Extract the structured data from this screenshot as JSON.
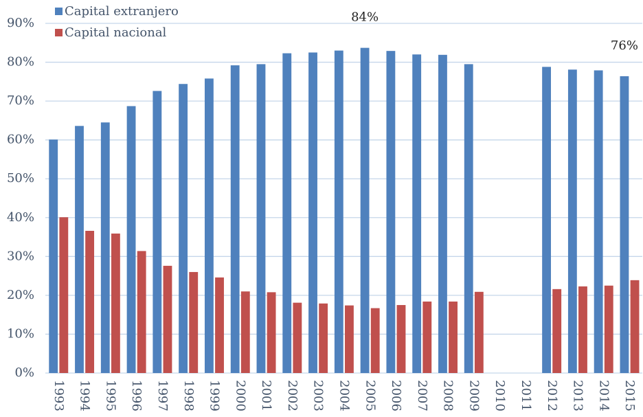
{
  "chart_data": {
    "type": "bar",
    "categories": [
      "1993",
      "1994",
      "1995",
      "1996",
      "1997",
      "1998",
      "1999",
      "2000",
      "2001",
      "2002",
      "2003",
      "2004",
      "2005",
      "2006",
      "2007",
      "2008",
      "2009",
      "2010",
      "2011",
      "2012",
      "2013",
      "2014",
      "2015"
    ],
    "series": [
      {
        "name": "Capital extranjero",
        "color": "#4f81bd",
        "values": [
          60.1,
          63.6,
          64.5,
          68.7,
          72.6,
          74.4,
          75.8,
          79.2,
          79.5,
          82.3,
          82.5,
          83.0,
          83.7,
          82.9,
          82.0,
          81.9,
          79.5,
          null,
          null,
          78.8,
          78.1,
          77.9,
          76.4
        ],
        "value_labels": [
          null,
          null,
          null,
          null,
          null,
          null,
          null,
          null,
          null,
          null,
          null,
          null,
          "84%",
          null,
          null,
          null,
          null,
          null,
          null,
          null,
          null,
          null,
          "76%"
        ]
      },
      {
        "name": "Capital nacional",
        "color": "#c0504d",
        "values": [
          40.1,
          36.6,
          35.9,
          31.4,
          27.6,
          26.0,
          24.6,
          21.0,
          20.8,
          18.1,
          17.9,
          17.4,
          16.7,
          17.5,
          18.4,
          18.4,
          20.9,
          null,
          null,
          21.6,
          22.3,
          22.5,
          23.9
        ]
      }
    ],
    "ylim": [
      0,
      90
    ],
    "yticks": [
      {
        "value": 0,
        "label": "0%"
      },
      {
        "value": 10,
        "label": "10%"
      },
      {
        "value": 20,
        "label": "20%"
      },
      {
        "value": 30,
        "label": "30%"
      },
      {
        "value": 40,
        "label": "40%"
      },
      {
        "value": 50,
        "label": "50%"
      },
      {
        "value": 60,
        "label": "60%"
      },
      {
        "value": 70,
        "label": "70%"
      },
      {
        "value": 80,
        "label": "80%"
      },
      {
        "value": 90,
        "label": "90%"
      }
    ],
    "grid": true,
    "legend": "top-left"
  }
}
